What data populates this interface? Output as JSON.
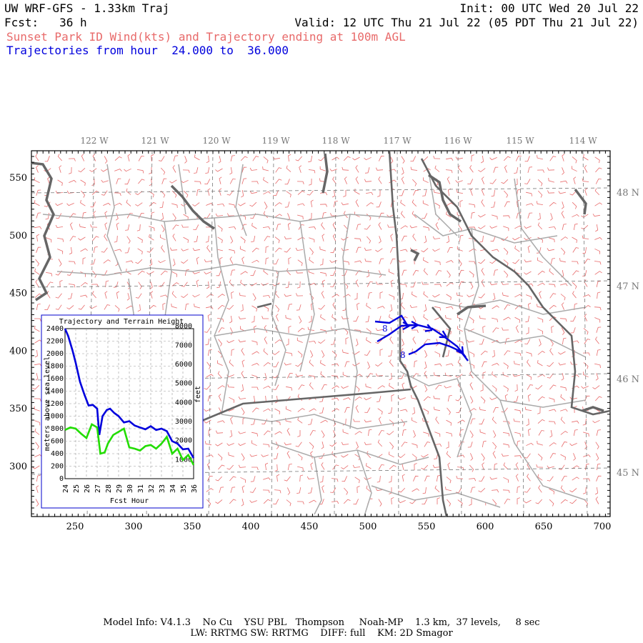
{
  "header": {
    "line1_left": "UW WRF-GFS - 1.33km Traj",
    "line1_right": "Init: 00 UTC Wed 20 Jul 22",
    "line2_left": "Fcst:   36 h",
    "line2_right": "Valid: 12 UTC Thu 21 Jul 22 (05 PDT Thu 21 Jul 22)",
    "line3": "Sunset Park ID Wind(kts) and Trajectory ending at 100m AGL",
    "line4": "Trajectories from hour  24.000 to  36.000"
  },
  "colors": {
    "title_red": "#e86a6a",
    "traj_blue": "#0000dd",
    "terrain_green": "#22dd00",
    "barb_red": "#e86a6a",
    "state_border": "#666666",
    "county_border": "#aaaaaa",
    "water": "#666666"
  },
  "map": {
    "lon_labels": [
      "122 W",
      "121 W",
      "120 W",
      "119 W",
      "118 W",
      "117 W",
      "116 W",
      "115 W",
      "114 W"
    ],
    "lat_labels": [
      "48 N",
      "47 N",
      "46 N",
      "45 N"
    ],
    "x_ticks": [
      "250",
      "300",
      "350",
      "400",
      "450",
      "500",
      "550",
      "600",
      "650",
      "700"
    ],
    "y_ticks": [
      "550",
      "500",
      "450",
      "400",
      "350",
      "300"
    ],
    "trajectory_markers": [
      "8",
      "8"
    ]
  },
  "inset": {
    "title": "Trajectory and Terrain Height",
    "ylabel_left": "meters above sea level",
    "ylabel_right": "feet",
    "xlabel": "Fcst Hour",
    "left_ticks": [
      "2400",
      "2200",
      "2000",
      "1800",
      "1600",
      "1400",
      "1200",
      "1000",
      "800",
      "600",
      "400",
      "200",
      "0"
    ],
    "right_ticks": [
      "8000",
      "7000",
      "6000",
      "5000",
      "4000",
      "3000",
      "2000",
      "1000"
    ],
    "x_ticks": [
      "24",
      "25",
      "26",
      "27",
      "28",
      "29",
      "30",
      "31",
      "32",
      "33",
      "34",
      "35",
      "36"
    ]
  },
  "chart_data": {
    "type": "line",
    "title": "Trajectory and Terrain Height",
    "xlabel": "Fcst Hour",
    "ylabel": "meters above sea level",
    "xlim": [
      24,
      36
    ],
    "ylim": [
      0,
      2400
    ],
    "series": [
      {
        "color": "#0000dd",
        "x": [
          24,
          24.3,
          24.7,
          25,
          25.4,
          25.8,
          26.2,
          26.6,
          27,
          27.2,
          27.5,
          27.9,
          28.2,
          28.6,
          29,
          29.5,
          30,
          30.5,
          31,
          31.5,
          32,
          32.5,
          33,
          33.5,
          34,
          34.5,
          35,
          35.5,
          36
        ],
        "y": [
          2400,
          2280,
          2050,
          1850,
          1550,
          1350,
          1170,
          1180,
          1120,
          700,
          1000,
          1100,
          1120,
          1050,
          1000,
          900,
          920,
          850,
          820,
          790,
          840,
          780,
          800,
          760,
          600,
          560,
          470,
          480,
          330
        ]
      },
      {
        "color": "#22dd00",
        "x": [
          24,
          24.5,
          25,
          25.5,
          26,
          26.5,
          27,
          27.3,
          27.7,
          28,
          28.5,
          29,
          29.5,
          30,
          30.5,
          31,
          31.5,
          32,
          32.5,
          33,
          33.5,
          34,
          34.5,
          35,
          35.5,
          36
        ],
        "y": [
          780,
          820,
          800,
          720,
          650,
          870,
          820,
          400,
          420,
          560,
          700,
          750,
          800,
          500,
          480,
          450,
          520,
          540,
          480,
          560,
          670,
          400,
          480,
          300,
          380,
          220
        ]
      }
    ]
  },
  "footer": {
    "line1": "Model Info: V4.1.3    No Cu    YSU PBL   Thompson     Noah-MP    1.3 km,  37 levels,     8 sec",
    "line2": "LW: RRTMG SW: RRTMG    DIFF: full    KM: 2D Smagor"
  }
}
